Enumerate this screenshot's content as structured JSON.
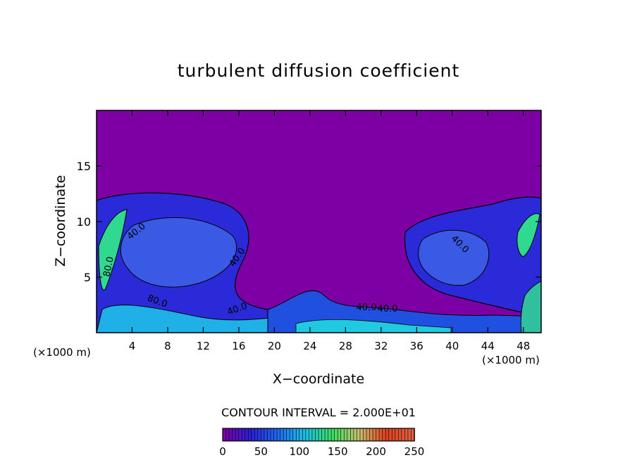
{
  "chart_data": {
    "type": "heatmap",
    "title": "turbulent diffusion coefficient",
    "xlabel": "X−coordinate",
    "ylabel": "Z−coordinate",
    "x_unit": "(×1000 m)",
    "y_unit": "(×1000 m)",
    "xlim": [
      0,
      50
    ],
    "ylim": [
      0,
      20
    ],
    "x_ticks": [
      4,
      8,
      12,
      16,
      20,
      24,
      28,
      32,
      36,
      40,
      44,
      48
    ],
    "y_ticks": [
      5,
      10,
      15
    ],
    "contour_interval": "CONTOUR INTERVAL = 2.000E+01",
    "contour_labels": [
      "80.0",
      "40.0",
      "40.0",
      "40.0",
      "40.0",
      "40.0",
      "40.0",
      "80.0"
    ],
    "colorbar": {
      "min": 0,
      "max": 250,
      "tick_labels": [
        "0",
        "50",
        "100",
        "150",
        "200",
        "250"
      ],
      "colors": [
        "#7b00a8",
        "#2a20d8",
        "#1e6cf0",
        "#1ec0e8",
        "#38e060",
        "#c8c070",
        "#e04020",
        "#e06040"
      ]
    },
    "background_value": 0,
    "color_background": "#7d00a5"
  }
}
